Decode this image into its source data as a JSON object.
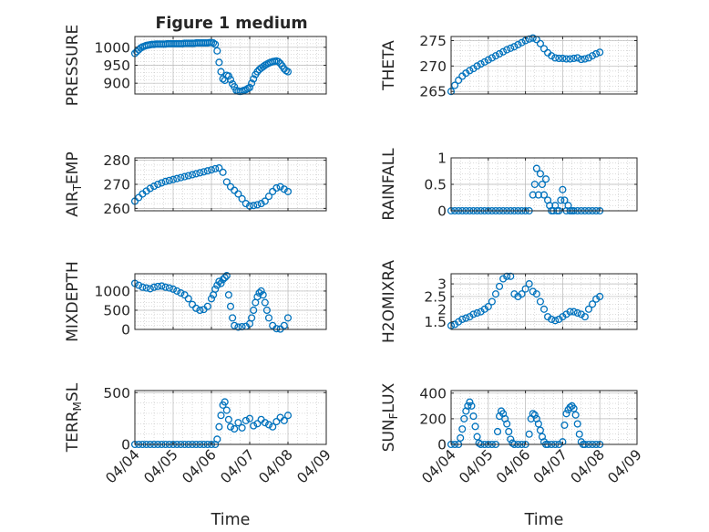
{
  "figure_title": "Figure 1 medium",
  "colors": {
    "marker": "#0072BD",
    "axis": "#262626",
    "grid": "#b8b8b8",
    "background": "#ffffff"
  },
  "chart_data": [
    {
      "type": "scatter",
      "ylabel": "PRESSURE",
      "ylim": [
        870,
        1030
      ],
      "yticks": [
        900,
        950,
        1000
      ],
      "ytick_labels": [
        "900",
        "950",
        "1000"
      ],
      "xlim": [
        0,
        5
      ],
      "grid": true,
      "x": [
        0.0,
        0.05,
        0.1,
        0.15,
        0.2,
        0.25,
        0.3,
        0.35,
        0.4,
        0.45,
        0.5,
        0.55,
        0.6,
        0.65,
        0.7,
        0.75,
        0.8,
        0.85,
        0.9,
        0.95,
        1.0,
        1.05,
        1.1,
        1.15,
        1.2,
        1.25,
        1.3,
        1.35,
        1.4,
        1.45,
        1.5,
        1.55,
        1.6,
        1.65,
        1.7,
        1.75,
        1.8,
        1.85,
        1.9,
        1.95,
        2.0,
        2.05,
        2.1,
        2.15,
        2.2,
        2.25,
        2.3,
        2.35,
        2.4,
        2.45,
        2.5,
        2.55,
        2.6,
        2.65,
        2.7,
        2.75,
        2.8,
        2.85,
        2.9,
        2.95,
        3.0,
        3.05,
        3.1,
        3.15,
        3.2,
        3.25,
        3.3,
        3.35,
        3.4,
        3.45,
        3.5,
        3.55,
        3.6,
        3.65,
        3.7,
        3.75,
        3.8,
        3.85,
        3.9,
        3.95,
        4.0
      ],
      "y": [
        983,
        988,
        993,
        998,
        1001,
        1003,
        1005,
        1006,
        1007,
        1008,
        1008,
        1009,
        1009,
        1009,
        1009,
        1009,
        1009,
        1010,
        1010,
        1010,
        1010,
        1010,
        1010,
        1010,
        1010,
        1010,
        1011,
        1011,
        1011,
        1011,
        1011,
        1011,
        1012,
        1012,
        1012,
        1012,
        1012,
        1012,
        1012,
        1013,
        1013,
        1012,
        1008,
        990,
        958,
        932,
        912,
        908,
        922,
        920,
        910,
        898,
        890,
        880,
        878,
        877,
        878,
        880,
        882,
        885,
        888,
        900,
        912,
        924,
        932,
        938,
        942,
        946,
        950,
        953,
        956,
        958,
        960,
        961,
        962,
        960,
        955,
        948,
        940,
        935,
        932
      ]
    },
    {
      "type": "scatter",
      "ylabel": "THETA",
      "ylim": [
        264.5,
        275.8
      ],
      "yticks": [
        265,
        270,
        275
      ],
      "ytick_labels": [
        "265",
        "270",
        "275"
      ],
      "xlim": [
        0,
        5
      ],
      "grid": true,
      "x": [
        0.0,
        0.1,
        0.2,
        0.3,
        0.4,
        0.5,
        0.6,
        0.7,
        0.8,
        0.9,
        1.0,
        1.1,
        1.2,
        1.3,
        1.4,
        1.5,
        1.6,
        1.7,
        1.8,
        1.9,
        2.0,
        2.1,
        2.2,
        2.3,
        2.4,
        2.5,
        2.6,
        2.7,
        2.8,
        2.9,
        3.0,
        3.1,
        3.2,
        3.3,
        3.4,
        3.5,
        3.6,
        3.7,
        3.8,
        3.9,
        4.0
      ],
      "y": [
        265,
        266.2,
        267.2,
        268,
        268.6,
        269.1,
        269.5,
        270,
        270.4,
        270.8,
        271.2,
        271.6,
        272,
        272.4,
        272.8,
        273.2,
        273.5,
        273.8,
        274.2,
        274.6,
        275,
        275.3,
        275.5,
        275.2,
        274.4,
        273.4,
        272.6,
        272,
        271.6,
        271.5,
        271.5,
        271.4,
        271.4,
        271.5,
        271.6,
        271.3,
        271.4,
        271.6,
        272,
        272.4,
        272.7
      ]
    },
    {
      "type": "scatter",
      "ylabel": "AIR",
      "ylabel_subscript": "T",
      "ylabel_suffix": "EMP",
      "ylim": [
        259,
        281
      ],
      "yticks": [
        260,
        270,
        280
      ],
      "ytick_labels": [
        "260",
        "270",
        "280"
      ],
      "xlim": [
        0,
        5
      ],
      "grid": true,
      "x": [
        0.0,
        0.1,
        0.2,
        0.3,
        0.4,
        0.5,
        0.6,
        0.7,
        0.8,
        0.9,
        1.0,
        1.1,
        1.2,
        1.3,
        1.4,
        1.5,
        1.6,
        1.7,
        1.8,
        1.9,
        2.0,
        2.1,
        2.2,
        2.3,
        2.4,
        2.5,
        2.6,
        2.7,
        2.8,
        2.9,
        3.0,
        3.1,
        3.2,
        3.3,
        3.4,
        3.5,
        3.6,
        3.7,
        3.8,
        3.9,
        4.0
      ],
      "y": [
        263,
        264.5,
        266,
        267.2,
        268.3,
        269.2,
        270,
        270.6,
        271.2,
        271.6,
        272,
        272.4,
        272.8,
        273.2,
        273.6,
        274,
        274.4,
        274.8,
        275.2,
        275.6,
        276,
        276.5,
        276.8,
        275,
        271,
        269,
        267.5,
        266,
        264,
        262,
        261,
        261.2,
        261.5,
        262,
        263,
        265,
        267,
        268.5,
        269,
        268,
        267
      ]
    },
    {
      "type": "scatter",
      "ylabel": "RAINFALL",
      "ylim": [
        0,
        1
      ],
      "yticks": [
        0,
        0.5,
        1
      ],
      "ytick_labels": [
        "0",
        "0.5",
        "1"
      ],
      "xlim": [
        0,
        5
      ],
      "grid": true,
      "x": [
        0.0,
        0.1,
        0.2,
        0.3,
        0.4,
        0.5,
        0.6,
        0.7,
        0.8,
        0.9,
        1.0,
        1.1,
        1.2,
        1.3,
        1.4,
        1.5,
        1.6,
        1.7,
        1.8,
        1.9,
        2.0,
        2.1,
        2.2,
        2.25,
        2.3,
        2.35,
        2.4,
        2.45,
        2.5,
        2.55,
        2.6,
        2.65,
        2.7,
        2.75,
        2.8,
        2.85,
        2.9,
        2.95,
        3.0,
        3.05,
        3.1,
        3.15,
        3.2,
        3.25,
        3.3,
        3.4,
        3.5,
        3.6,
        3.7,
        3.8,
        3.9,
        4.0
      ],
      "y": [
        0,
        0,
        0,
        0,
        0,
        0,
        0,
        0,
        0,
        0,
        0,
        0,
        0,
        0,
        0,
        0,
        0,
        0,
        0,
        0,
        0,
        0,
        0.3,
        0.5,
        0.8,
        0.3,
        0.7,
        0.5,
        0.3,
        0.6,
        0.2,
        0.1,
        0,
        0,
        0.1,
        0,
        0,
        0.2,
        0.4,
        0.2,
        0,
        0.1,
        0,
        0,
        0,
        0,
        0,
        0,
        0,
        0,
        0,
        0
      ]
    },
    {
      "type": "scatter",
      "ylabel": "MIXDEPTH",
      "ylim": [
        0,
        1450
      ],
      "yticks": [
        0,
        500,
        1000
      ],
      "ytick_labels": [
        "0",
        "500",
        "1000"
      ],
      "xlim": [
        0,
        5
      ],
      "grid": true,
      "x": [
        0.0,
        0.1,
        0.2,
        0.3,
        0.4,
        0.5,
        0.6,
        0.7,
        0.8,
        0.9,
        1.0,
        1.1,
        1.2,
        1.3,
        1.4,
        1.5,
        1.6,
        1.7,
        1.8,
        1.9,
        2.0,
        2.05,
        2.1,
        2.15,
        2.2,
        2.25,
        2.3,
        2.35,
        2.4,
        2.45,
        2.5,
        2.55,
        2.6,
        2.7,
        2.8,
        2.9,
        3.0,
        3.05,
        3.1,
        3.15,
        3.2,
        3.25,
        3.3,
        3.35,
        3.4,
        3.45,
        3.5,
        3.6,
        3.7,
        3.8,
        3.9,
        4.0
      ],
      "y": [
        1200,
        1150,
        1100,
        1080,
        1060,
        1100,
        1120,
        1130,
        1100,
        1080,
        1050,
        1000,
        950,
        900,
        800,
        650,
        550,
        500,
        520,
        600,
        800,
        900,
        1050,
        1150,
        1250,
        1200,
        1300,
        1350,
        1400,
        900,
        600,
        300,
        100,
        60,
        70,
        80,
        150,
        300,
        500,
        700,
        850,
        950,
        1000,
        900,
        700,
        500,
        300,
        100,
        20,
        10,
        100,
        300
      ]
    },
    {
      "type": "scatter",
      "ylabel": "H2OMIXRA",
      "ylim": [
        1.2,
        3.4
      ],
      "yticks": [
        1.5,
        2.5,
        3
      ],
      "ytick_labels": [
        "1.5",
        "2.5",
        "3"
      ],
      "ytick_overlap_label": "2",
      "xlim": [
        0,
        5
      ],
      "grid": true,
      "x": [
        0.0,
        0.1,
        0.2,
        0.3,
        0.4,
        0.5,
        0.6,
        0.7,
        0.8,
        0.9,
        1.0,
        1.1,
        1.2,
        1.3,
        1.4,
        1.5,
        1.6,
        1.7,
        1.8,
        1.9,
        2.0,
        2.1,
        2.2,
        2.3,
        2.4,
        2.5,
        2.6,
        2.7,
        2.8,
        2.9,
        3.0,
        3.1,
        3.2,
        3.3,
        3.4,
        3.5,
        3.6,
        3.7,
        3.8,
        3.9,
        4.0
      ],
      "y": [
        1.35,
        1.4,
        1.5,
        1.6,
        1.65,
        1.7,
        1.8,
        1.85,
        1.9,
        2.0,
        2.1,
        2.3,
        2.6,
        2.9,
        3.2,
        3.3,
        3.3,
        2.6,
        2.5,
        2.6,
        2.8,
        3.0,
        2.7,
        2.6,
        2.3,
        2.0,
        1.7,
        1.6,
        1.55,
        1.6,
        1.7,
        1.8,
        1.9,
        1.9,
        1.85,
        1.8,
        1.7,
        2.0,
        2.2,
        2.4,
        2.5
      ]
    },
    {
      "type": "scatter",
      "ylabel": "TERR",
      "ylabel_subscript": "M",
      "ylabel_suffix": "SL",
      "ylim": [
        0,
        520
      ],
      "yticks": [
        0,
        500
      ],
      "ytick_labels": [
        "0",
        "500"
      ],
      "xlim": [
        0,
        5
      ],
      "grid": true,
      "x": [
        0.0,
        0.1,
        0.2,
        0.3,
        0.4,
        0.5,
        0.6,
        0.7,
        0.8,
        0.9,
        1.0,
        1.1,
        1.2,
        1.3,
        1.4,
        1.5,
        1.6,
        1.7,
        1.8,
        1.9,
        2.0,
        2.1,
        2.15,
        2.2,
        2.25,
        2.3,
        2.35,
        2.4,
        2.45,
        2.5,
        2.6,
        2.7,
        2.8,
        2.9,
        3.0,
        3.1,
        3.2,
        3.3,
        3.4,
        3.5,
        3.6,
        3.7,
        3.8,
        3.9,
        4.0
      ],
      "y": [
        0,
        0,
        0,
        0,
        0,
        0,
        0,
        0,
        0,
        0,
        0,
        0,
        0,
        0,
        0,
        0,
        0,
        0,
        0,
        0,
        0,
        0,
        50,
        170,
        280,
        380,
        410,
        330,
        240,
        170,
        150,
        210,
        160,
        230,
        250,
        180,
        200,
        240,
        210,
        190,
        170,
        220,
        260,
        230,
        280
      ]
    },
    {
      "type": "scatter",
      "ylabel": "SUN",
      "ylabel_subscript": "F",
      "ylabel_suffix": "LUX",
      "ylim": [
        0,
        420
      ],
      "yticks": [
        0,
        200,
        400
      ],
      "ytick_labels": [
        "0",
        "200",
        "400"
      ],
      "xlim": [
        0,
        5
      ],
      "grid": true,
      "x": [
        0.0,
        0.1,
        0.2,
        0.25,
        0.3,
        0.35,
        0.4,
        0.45,
        0.5,
        0.55,
        0.6,
        0.65,
        0.7,
        0.75,
        0.8,
        0.9,
        1.0,
        1.1,
        1.2,
        1.25,
        1.3,
        1.35,
        1.4,
        1.45,
        1.5,
        1.55,
        1.6,
        1.65,
        1.7,
        1.8,
        1.9,
        2.0,
        2.1,
        2.15,
        2.2,
        2.25,
        2.3,
        2.35,
        2.4,
        2.45,
        2.5,
        2.55,
        2.6,
        2.7,
        2.8,
        2.9,
        3.0,
        3.05,
        3.1,
        3.15,
        3.2,
        3.25,
        3.3,
        3.35,
        3.4,
        3.45,
        3.5,
        3.55,
        3.6,
        3.7,
        3.8,
        3.9,
        4.0
      ],
      "y": [
        0,
        0,
        0,
        50,
        120,
        200,
        260,
        300,
        330,
        300,
        220,
        140,
        60,
        10,
        0,
        0,
        0,
        0,
        0,
        100,
        220,
        260,
        240,
        200,
        160,
        100,
        40,
        10,
        0,
        0,
        0,
        0,
        80,
        200,
        240,
        230,
        200,
        160,
        110,
        60,
        20,
        0,
        0,
        0,
        0,
        0,
        20,
        150,
        240,
        270,
        290,
        300,
        280,
        230,
        160,
        80,
        20,
        0,
        0,
        0,
        0,
        0,
        0
      ]
    }
  ],
  "x_axis": {
    "label": "Time",
    "tick_labels": [
      "04/04",
      "04/05",
      "04/06",
      "04/07",
      "04/08",
      "04/09"
    ]
  }
}
